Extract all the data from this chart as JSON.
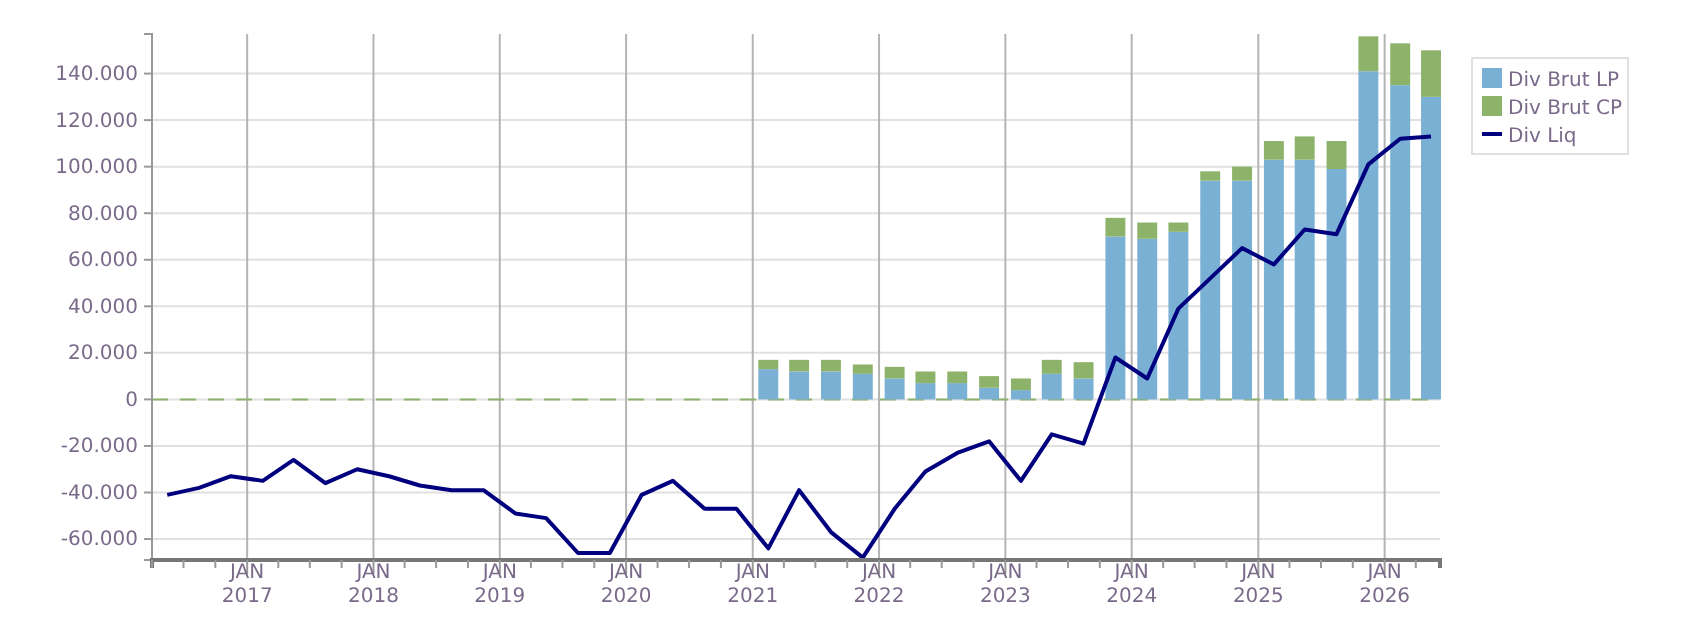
{
  "chart_data": {
    "type": "bar",
    "stacked": true,
    "xlim": [
      "2016-04-01",
      "2026-06-10"
    ],
    "ylim": [
      -69000,
      157000
    ],
    "yticks": [
      {
        "value": -60000,
        "label": "-60.000"
      },
      {
        "value": -40000,
        "label": "-40.000"
      },
      {
        "value": -20000,
        "label": "-20.000"
      },
      0,
      {
        "value": 20000,
        "label": "20.000"
      },
      {
        "value": 40000,
        "label": "40.000"
      },
      {
        "value": 60000,
        "label": "60.000"
      },
      {
        "value": 80000,
        "label": "80.000"
      },
      {
        "value": 100000,
        "label": "100.000"
      },
      {
        "value": 120000,
        "label": "120.000"
      },
      {
        "value": 140000,
        "label": "140.000"
      }
    ],
    "xticks": [
      {
        "value": "2016-04-01",
        "label": null
      },
      {
        "value": "2016-07-01",
        "label": null
      },
      {
        "value": "2016-10-01",
        "label": null
      },
      {
        "value": "2017-01-01",
        "label": "JAN 2017"
      },
      {
        "value": "2017-04-01",
        "label": null
      },
      {
        "value": "2017-07-01",
        "label": null
      },
      {
        "value": "2017-10-01",
        "label": null
      },
      {
        "value": "2018-01-01",
        "label": "JAN 2018"
      },
      {
        "value": "2018-04-01",
        "label": null
      },
      {
        "value": "2018-07-01",
        "label": null
      },
      {
        "value": "2018-10-01",
        "label": null
      },
      {
        "value": "2019-01-01",
        "label": "JAN 2019"
      },
      {
        "value": "2019-04-01",
        "label": null
      },
      {
        "value": "2019-07-01",
        "label": null
      },
      {
        "value": "2019-10-01",
        "label": null
      },
      {
        "value": "2020-01-01",
        "label": "JAN 2020"
      },
      {
        "value": "2020-04-01",
        "label": null
      },
      {
        "value": "2020-07-01",
        "label": null
      },
      {
        "value": "2020-10-01",
        "label": null
      },
      {
        "value": "2021-01-01",
        "label": "JAN 2021"
      },
      {
        "value": "2021-04-01",
        "label": null
      },
      {
        "value": "2021-07-01",
        "label": null
      },
      {
        "value": "2021-10-01",
        "label": null
      },
      {
        "value": "2022-01-01",
        "label": "JAN 2022"
      },
      {
        "value": "2022-04-01",
        "label": null
      },
      {
        "value": "2022-07-01",
        "label": null
      },
      {
        "value": "2022-10-01",
        "label": null
      },
      {
        "value": "2023-01-01",
        "label": "JAN 2023"
      },
      {
        "value": "2023-04-01",
        "label": null
      },
      {
        "value": "2023-07-01",
        "label": null
      },
      {
        "value": "2023-10-01",
        "label": null
      },
      {
        "value": "2024-01-01",
        "label": "JAN 2024"
      },
      {
        "value": "2024-04-01",
        "label": null
      },
      {
        "value": "2024-07-01",
        "label": null
      },
      {
        "value": "2024-10-01",
        "label": null
      },
      {
        "value": "2025-01-01",
        "label": "JAN 2025"
      },
      {
        "value": "2025-04-01",
        "label": null
      },
      {
        "value": "2025-07-01",
        "label": null
      },
      {
        "value": "2025-10-01",
        "label": null
      },
      {
        "value": "2026-01-01",
        "label": "JAN 2026"
      },
      {
        "value": "2026-04-01",
        "label": null
      }
    ],
    "grid": true,
    "legend": "top right",
    "ref_lines": [
      {
        "axis": "y",
        "value": 0,
        "color": "#8db36b",
        "line_style": "dashed"
      }
    ],
    "series": [
      {
        "name": "Div Brut LP",
        "color": "#7ab0d4",
        "x": [
          "2021-02-15",
          "2021-05-15",
          "2021-08-15",
          "2021-11-15",
          "2022-02-15",
          "2022-05-15",
          "2022-08-15",
          "2022-11-15",
          "2023-02-15",
          "2023-05-15",
          "2023-08-15",
          "2023-11-15",
          "2024-02-15",
          "2024-05-15",
          "2024-08-15",
          "2024-11-15",
          "2025-02-15",
          "2025-05-15",
          "2025-08-15",
          "2025-11-15",
          "2026-02-15",
          "2026-05-15"
        ],
        "values": [
          13000,
          12000,
          12000,
          11000,
          9000,
          7000,
          7000,
          5000,
          4000,
          11000,
          9000,
          70000,
          69000,
          72000,
          94000,
          94000,
          103000,
          103000,
          99000,
          141000,
          135000,
          130000
        ]
      },
      {
        "name": "Div Brut CP",
        "color": "#8db36b",
        "x": [
          "2021-02-15",
          "2021-05-15",
          "2021-08-15",
          "2021-11-15",
          "2022-02-15",
          "2022-05-15",
          "2022-08-15",
          "2022-11-15",
          "2023-02-15",
          "2023-05-15",
          "2023-08-15",
          "2023-11-15",
          "2024-02-15",
          "2024-05-15",
          "2024-08-15",
          "2024-11-15",
          "2025-02-15",
          "2025-05-15",
          "2025-08-15",
          "2025-11-15",
          "2026-02-15",
          "2026-05-15"
        ],
        "values": [
          4000,
          5000,
          5000,
          4000,
          5000,
          5000,
          5000,
          5000,
          5000,
          6000,
          7000,
          8000,
          7000,
          4000,
          4000,
          6000,
          8000,
          10000,
          12000,
          15000,
          18000,
          20000
        ]
      },
      {
        "name": "Div Liq",
        "type": "line",
        "color": "#00007f",
        "x": [
          "2016-05-15",
          "2016-08-15",
          "2016-11-15",
          "2017-02-15",
          "2017-05-15",
          "2017-08-15",
          "2017-11-15",
          "2018-02-15",
          "2018-05-15",
          "2018-08-15",
          "2018-11-15",
          "2019-02-15",
          "2019-05-15",
          "2019-08-15",
          "2019-11-15",
          "2020-02-15",
          "2020-05-15",
          "2020-08-15",
          "2020-11-15",
          "2021-02-15",
          "2021-05-15",
          "2021-08-15",
          "2021-11-15",
          "2022-02-15",
          "2022-05-15",
          "2022-08-15",
          "2022-11-15",
          "2023-02-15",
          "2023-05-15",
          "2023-08-15",
          "2023-11-15",
          "2024-02-15",
          "2024-05-15",
          "2024-08-15",
          "2024-11-15",
          "2025-02-15",
          "2025-05-15",
          "2025-08-15",
          "2025-11-15",
          "2026-02-15",
          "2026-05-15"
        ],
        "values": [
          -41000,
          -38000,
          -33000,
          -35000,
          -26000,
          -36000,
          -30000,
          -33000,
          -37000,
          -39000,
          -39000,
          -49000,
          -51000,
          -66000,
          -66000,
          -41000,
          -35000,
          -47000,
          -47000,
          -64000,
          -39000,
          -57000,
          -68000,
          -47000,
          -31000,
          -23000,
          -18000,
          -35000,
          -15000,
          -19000,
          18000,
          9000,
          39000,
          52000,
          65000,
          58000,
          73000,
          71000,
          101000,
          112000,
          113000
        ]
      }
    ]
  }
}
